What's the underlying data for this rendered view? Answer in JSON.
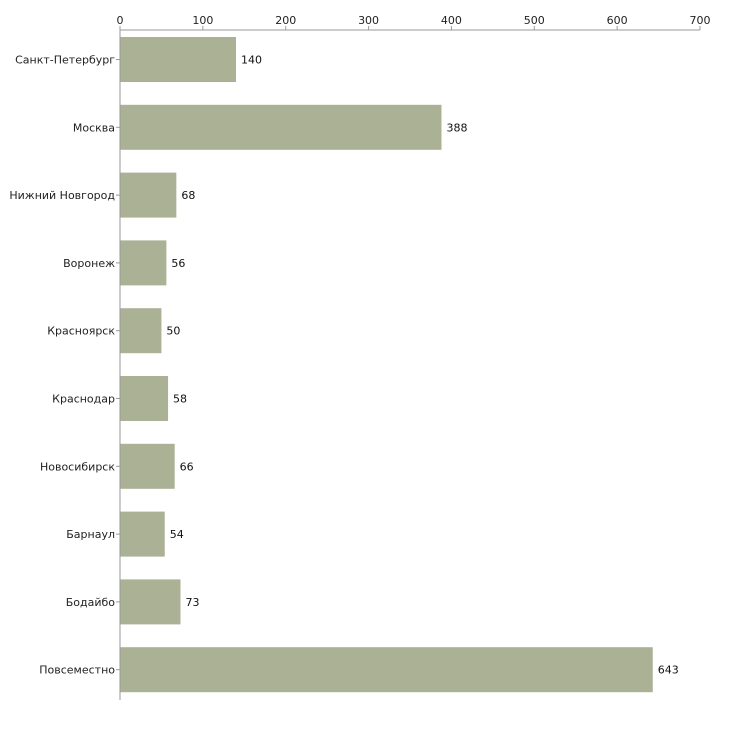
{
  "chart_data": {
    "type": "bar",
    "orientation": "horizontal",
    "categories": [
      "Санкт-Петербург",
      "Москва",
      "Нижний Новгород",
      "Воронеж",
      "Красноярск",
      "Краснодар",
      "Новосибирск",
      "Барнаул",
      "Бодайбо",
      "Повсеместно"
    ],
    "values": [
      140,
      388,
      68,
      56,
      50,
      58,
      66,
      54,
      73,
      643
    ],
    "xlim": [
      0,
      700
    ],
    "ticks": [
      0,
      100,
      200,
      300,
      400,
      500,
      600,
      700
    ],
    "tick_labels": [
      "0",
      "100",
      "200",
      "300",
      "400",
      "500",
      "600",
      "700"
    ],
    "axis_position": "top",
    "grid": false,
    "title": "",
    "xlabel": "",
    "ylabel": "",
    "bar_color": "#abb195"
  }
}
